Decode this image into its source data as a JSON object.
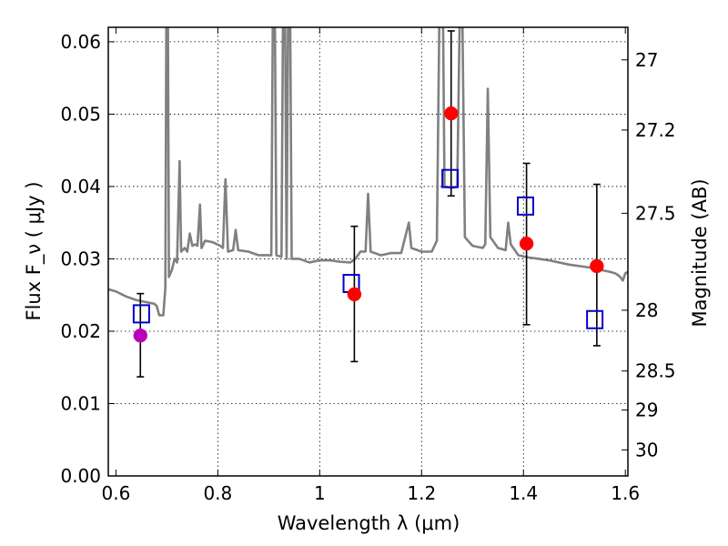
{
  "chart_data": {
    "type": "scatter",
    "xlabel": "Wavelength  λ (μm)",
    "ylabel": "Flux  F_ν  ( μJy )",
    "ylabel_right": "Magnitude (AB)",
    "xlim": [
      0.585,
      1.605
    ],
    "ylim": [
      0.0,
      0.062
    ],
    "grid": true,
    "x_ticks": [
      0.6,
      0.8,
      1.0,
      1.2,
      1.4,
      1.6
    ],
    "x_tick_labels": [
      "0.6",
      "0.8",
      "1",
      "1.2",
      "1.4",
      "1.6"
    ],
    "y_ticks": [
      0.0,
      0.01,
      0.02,
      0.03,
      0.04,
      0.05,
      0.06
    ],
    "y_tick_labels": [
      "0.00",
      "0.01",
      "0.02",
      "0.03",
      "0.04",
      "0.05",
      "0.06"
    ],
    "mag_ticks": [
      {
        "label": "27",
        "flux": 0.0575
      },
      {
        "label": "27.2",
        "flux": 0.0478
      },
      {
        "label": "27.5",
        "flux": 0.0363
      },
      {
        "label": "28",
        "flux": 0.0229
      },
      {
        "label": "28.5",
        "flux": 0.0145
      },
      {
        "label": "29",
        "flux": 0.0091
      },
      {
        "label": "30",
        "flux": 0.0036
      }
    ],
    "series": [
      {
        "style": "line",
        "color": "#808080",
        "points": [
          [
            0.585,
            0.0258
          ],
          [
            0.6,
            0.0255
          ],
          [
            0.62,
            0.0248
          ],
          [
            0.64,
            0.0243
          ],
          [
            0.66,
            0.024
          ],
          [
            0.675,
            0.0238
          ],
          [
            0.68,
            0.0235
          ],
          [
            0.685,
            0.0222
          ],
          [
            0.693,
            0.0222
          ],
          [
            0.697,
            0.026
          ],
          [
            0.699,
            0.064
          ],
          [
            0.702,
            0.064
          ],
          [
            0.704,
            0.0275
          ],
          [
            0.71,
            0.0285
          ],
          [
            0.715,
            0.03
          ],
          [
            0.72,
            0.0295
          ],
          [
            0.725,
            0.0435
          ],
          [
            0.728,
            0.031
          ],
          [
            0.735,
            0.0315
          ],
          [
            0.74,
            0.031
          ],
          [
            0.745,
            0.0335
          ],
          [
            0.75,
            0.0318
          ],
          [
            0.755,
            0.032
          ],
          [
            0.76,
            0.0318
          ],
          [
            0.765,
            0.0375
          ],
          [
            0.768,
            0.0315
          ],
          [
            0.775,
            0.0325
          ],
          [
            0.79,
            0.0323
          ],
          [
            0.805,
            0.0318
          ],
          [
            0.81,
            0.0315
          ],
          [
            0.815,
            0.041
          ],
          [
            0.82,
            0.031
          ],
          [
            0.83,
            0.0312
          ],
          [
            0.835,
            0.034
          ],
          [
            0.84,
            0.0312
          ],
          [
            0.86,
            0.031
          ],
          [
            0.88,
            0.0305
          ],
          [
            0.9,
            0.0305
          ],
          [
            0.905,
            0.0305
          ],
          [
            0.908,
            0.064
          ],
          [
            0.912,
            0.064
          ],
          [
            0.915,
            0.0305
          ],
          [
            0.925,
            0.0303
          ],
          [
            0.928,
            0.064
          ],
          [
            0.932,
            0.064
          ],
          [
            0.935,
            0.03
          ],
          [
            0.938,
            0.064
          ],
          [
            0.942,
            0.064
          ],
          [
            0.945,
            0.03
          ],
          [
            0.96,
            0.03
          ],
          [
            0.98,
            0.0295
          ],
          [
            1.0,
            0.0298
          ],
          [
            1.02,
            0.0298
          ],
          [
            1.04,
            0.0296
          ],
          [
            1.06,
            0.0295
          ],
          [
            1.07,
            0.03
          ],
          [
            1.08,
            0.031
          ],
          [
            1.09,
            0.031
          ],
          [
            1.095,
            0.039
          ],
          [
            1.1,
            0.031
          ],
          [
            1.12,
            0.0305
          ],
          [
            1.14,
            0.0308
          ],
          [
            1.16,
            0.0308
          ],
          [
            1.175,
            0.035
          ],
          [
            1.18,
            0.0315
          ],
          [
            1.2,
            0.031
          ],
          [
            1.22,
            0.031
          ],
          [
            1.23,
            0.0325
          ],
          [
            1.235,
            0.064
          ],
          [
            1.242,
            0.064
          ],
          [
            1.245,
            0.04
          ],
          [
            1.26,
            0.0398
          ],
          [
            1.27,
            0.04
          ],
          [
            1.275,
            0.064
          ],
          [
            1.28,
            0.064
          ],
          [
            1.285,
            0.033
          ],
          [
            1.3,
            0.0318
          ],
          [
            1.32,
            0.0315
          ],
          [
            1.325,
            0.032
          ],
          [
            1.33,
            0.0535
          ],
          [
            1.335,
            0.033
          ],
          [
            1.35,
            0.0315
          ],
          [
            1.365,
            0.0312
          ],
          [
            1.37,
            0.035
          ],
          [
            1.375,
            0.032
          ],
          [
            1.39,
            0.0305
          ],
          [
            1.41,
            0.0302
          ],
          [
            1.43,
            0.03
          ],
          [
            1.45,
            0.0298
          ],
          [
            1.47,
            0.0295
          ],
          [
            1.49,
            0.0292
          ],
          [
            1.51,
            0.029
          ],
          [
            1.53,
            0.0288
          ],
          [
            1.55,
            0.0285
          ],
          [
            1.57,
            0.0282
          ],
          [
            1.58,
            0.028
          ],
          [
            1.585,
            0.0278
          ],
          [
            1.59,
            0.0275
          ],
          [
            1.595,
            0.027
          ],
          [
            1.6,
            0.028
          ],
          [
            1.605,
            0.0282
          ]
        ]
      },
      {
        "style": "errorbar",
        "color": "#000000",
        "bars": [
          {
            "x": 0.648,
            "low": 0.0137,
            "high": 0.0252
          },
          {
            "x": 1.068,
            "low": 0.0158,
            "high": 0.0345
          },
          {
            "x": 1.258,
            "low": 0.0387,
            "high": 0.0615
          },
          {
            "x": 1.406,
            "low": 0.0209,
            "high": 0.0432
          },
          {
            "x": 1.544,
            "low": 0.018,
            "high": 0.0403
          }
        ]
      },
      {
        "style": "open-square",
        "color": "#0000CC",
        "points": [
          [
            0.65,
            0.0224
          ],
          [
            1.062,
            0.0266
          ],
          [
            1.256,
            0.0411
          ],
          [
            1.404,
            0.0373
          ],
          [
            1.54,
            0.0216
          ]
        ]
      },
      {
        "style": "filled-circle",
        "points": [
          {
            "x": 0.648,
            "y": 0.0194,
            "color": "#BB00BB"
          },
          {
            "x": 1.068,
            "y": 0.0251,
            "color": "#FF0000"
          },
          {
            "x": 1.258,
            "y": 0.0501,
            "color": "#FF0000"
          },
          {
            "x": 1.406,
            "y": 0.0321,
            "color": "#FF0000"
          },
          {
            "x": 1.544,
            "y": 0.029,
            "color": "#FF0000"
          }
        ]
      }
    ]
  }
}
